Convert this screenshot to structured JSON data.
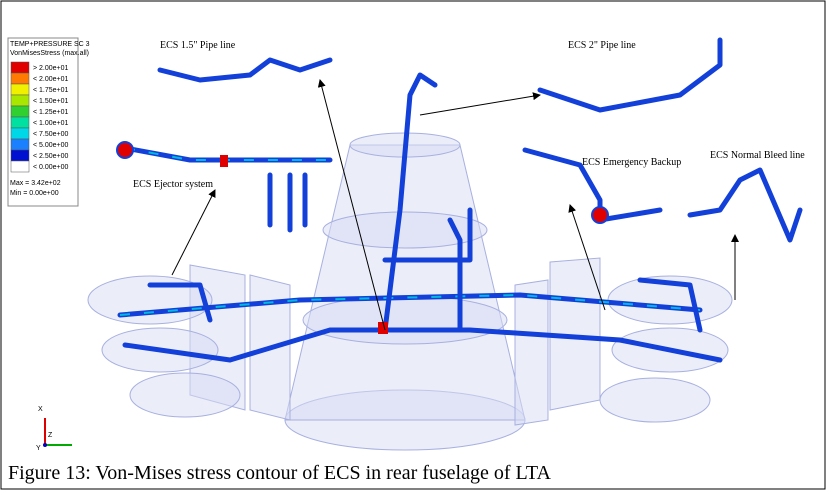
{
  "legend": {
    "title": "TEMP+PRESSURE SC 3",
    "subtitle": "VonMisesStress (max.all)",
    "entries": [
      {
        "label": "> 2.00e+01",
        "color": "#e00000"
      },
      {
        "label": "< 2.00e+01",
        "color": "#ff7a00"
      },
      {
        "label": "< 1.75e+01",
        "color": "#f0f000"
      },
      {
        "label": "< 1.50e+01",
        "color": "#a8e800"
      },
      {
        "label": "< 1.25e+01",
        "color": "#30d030"
      },
      {
        "label": "< 1.00e+01",
        "color": "#00e0a0"
      },
      {
        "label": "< 7.50e+00",
        "color": "#00d8e8"
      },
      {
        "label": "< 5.00e+00",
        "color": "#1a80ff"
      },
      {
        "label": "< 2.50e+00",
        "color": "#0010d0"
      },
      {
        "label": "< 0.00e+00",
        "color": "#ffffff"
      }
    ],
    "max": "Max = 3.42e+02",
    "min": "Min = 0.00e+00"
  },
  "labels": {
    "pipe_15": "ECS 1.5\" Pipe line",
    "pipe_2": "ECS 2\" Pipe line",
    "ejector": "ECS Ejector system",
    "emergency": "ECS Emergency Backup",
    "bleed": "ECS Normal Bleed line"
  },
  "axes": {
    "x": "X",
    "y": "Y",
    "z": "Z"
  },
  "caption": "Figure 13: Von-Mises stress contour of ECS in rear fuselage of LTA"
}
